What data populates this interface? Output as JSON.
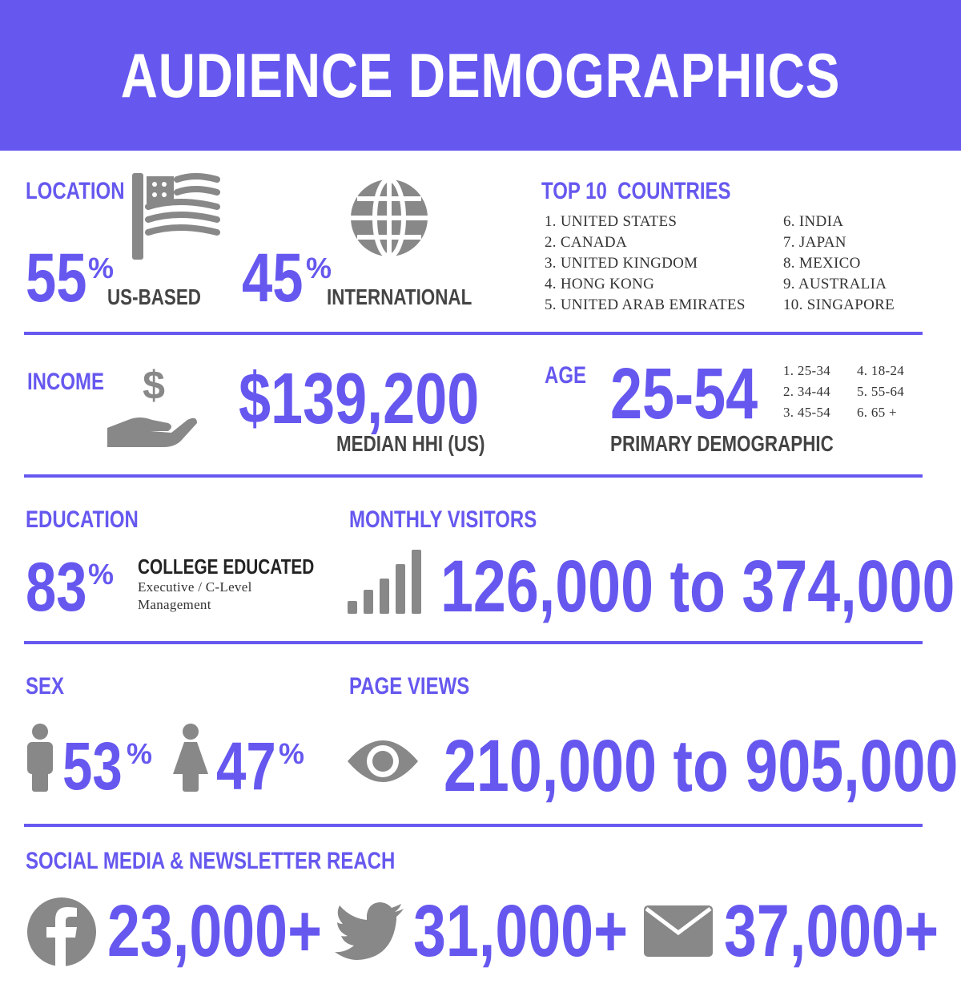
{
  "title": "AUDIENCE DEMOGRAPHICS",
  "colors": {
    "accent": "#6658EF",
    "icon": "#888888",
    "text": "#444444"
  },
  "location": {
    "label": "LOCATION",
    "us_value": "55",
    "us_unit": "%",
    "us_caption": "US-BASED",
    "intl_value": "45",
    "intl_unit": "%",
    "intl_caption": "INTERNATIONAL",
    "icons": [
      "flag-icon",
      "globe-icon"
    ]
  },
  "countries": {
    "label": "TOP 10  COUNTRIES",
    "col1": [
      "1. UNITED STATES",
      "2. CANADA",
      "3. UNITED KINGDOM",
      "4. HONG KONG",
      "5. UNITED ARAB EMIRATES"
    ],
    "col2": [
      "6. INDIA",
      "7. JAPAN",
      "8. MEXICO",
      "9. AUSTRALIA",
      "10. SINGAPORE"
    ]
  },
  "income": {
    "label": "INCOME",
    "value": "$139,200",
    "caption": "MEDIAN HHI (US)",
    "icon": "hand-dollar-icon"
  },
  "age": {
    "label": "AGE",
    "value": "25-54",
    "caption": "PRIMARY DEMOGRAPHIC",
    "col1": [
      "1. 25-34",
      "2. 34-44",
      "3. 45-54"
    ],
    "col2": [
      "4. 18-24",
      "5. 55-64",
      "6. 65 +"
    ]
  },
  "education": {
    "label": "EDUCATION",
    "value": "83",
    "unit": "%",
    "caption": "COLLEGE EDUCATED",
    "sub1": "Executive / C-Level",
    "sub2": "Management"
  },
  "visitors": {
    "label": "MONTHLY VISITORS",
    "value": "126,000 to 374,000",
    "icon": "signal-bars-icon"
  },
  "sex": {
    "label": "SEX",
    "male_value": "53",
    "male_unit": "%",
    "female_value": "47",
    "female_unit": "%",
    "icons": [
      "male-icon",
      "female-icon"
    ]
  },
  "pageviews": {
    "label": "PAGE VIEWS",
    "value": "210,000 to 905,000",
    "icon": "eye-icon"
  },
  "social": {
    "label": "SOCIAL MEDIA & NEWSLETTER REACH",
    "facebook": "23,000+",
    "twitter": "31,000+",
    "email": "37,000+",
    "icons": [
      "facebook-icon",
      "twitter-icon",
      "envelope-icon"
    ]
  }
}
